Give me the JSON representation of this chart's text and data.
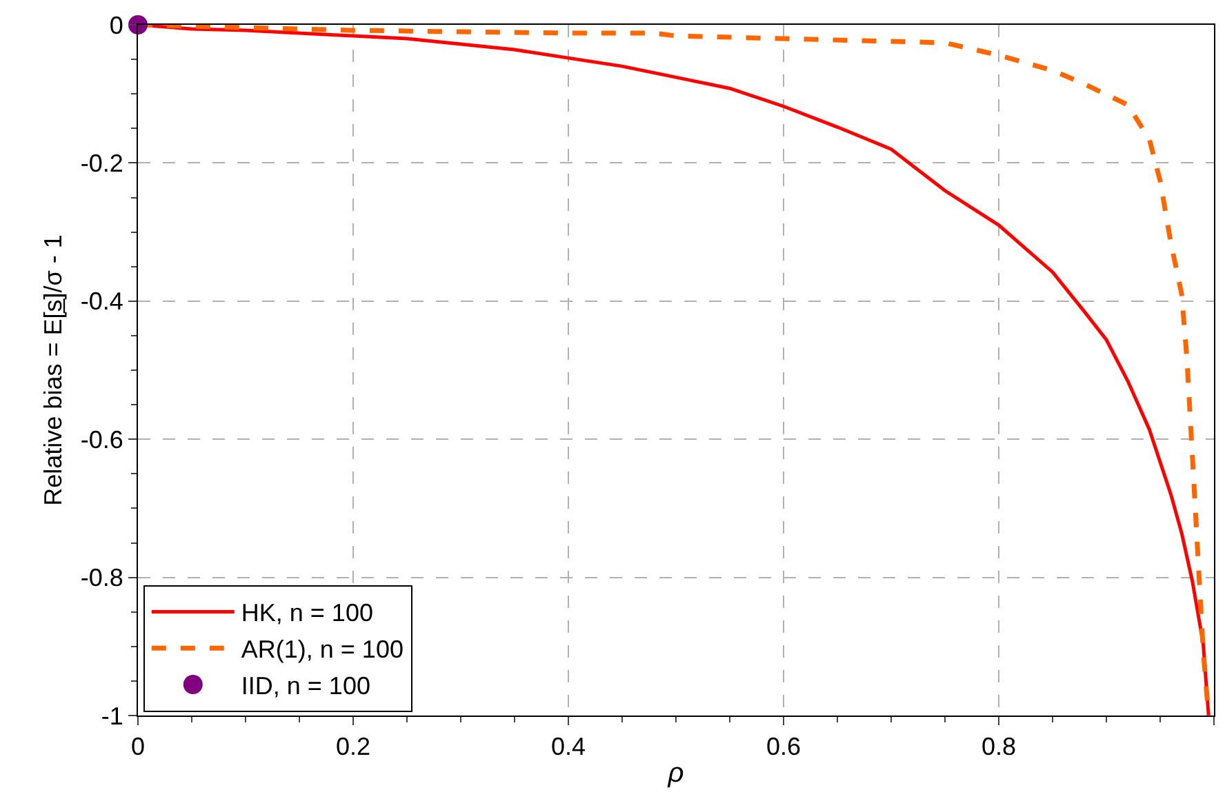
{
  "chart_data": {
    "type": "line",
    "xlabel": "ρ",
    "ylabel": "Relative bias = E[s̲]/σ - 1",
    "xlim": [
      0,
      1
    ],
    "ylim": [
      -1,
      0
    ],
    "xticks": [
      0,
      0.2,
      0.4,
      0.6,
      0.8,
      {
        "value": 1,
        "label": null
      }
    ],
    "yticks": [
      -1,
      -0.8,
      -0.6,
      -0.4,
      -0.2,
      0
    ],
    "grid": true,
    "legend": "bottom left",
    "series": [
      {
        "name": "HK, n = 100",
        "color": "#ff0000",
        "line_style": "solid",
        "marker": "none",
        "x": [
          0,
          0.05,
          0.1,
          0.2,
          0.25,
          0.3,
          0.35,
          0.4,
          0.45,
          0.5,
          0.55,
          0.6,
          0.65,
          0.7,
          0.72,
          0.75,
          0.8,
          0.85,
          0.88,
          0.9,
          0.92,
          0.94,
          0.96,
          0.97,
          0.98,
          0.99,
          0.995
        ],
        "values": [
          0,
          -0.006,
          -0.008,
          -0.016,
          -0.02,
          -0.028,
          -0.036,
          -0.048,
          -0.06,
          -0.076,
          -0.092,
          -0.118,
          -0.148,
          -0.18,
          -0.204,
          -0.24,
          -0.29,
          -0.358,
          -0.416,
          -0.456,
          -0.516,
          -0.586,
          -0.68,
          -0.736,
          -0.806,
          -0.896,
          -1
        ]
      },
      {
        "name": "AR(1), n = 100",
        "color": "#ff6600",
        "line_style": "dashed",
        "marker": "none",
        "x": [
          0,
          0.1,
          0.2,
          0.3,
          0.4,
          0.48,
          0.5,
          0.6,
          0.7,
          0.75,
          0.8,
          0.85,
          0.88,
          0.92,
          0.94,
          0.95,
          0.96,
          0.97,
          0.975,
          0.98,
          0.985,
          0.99,
          0.995
        ],
        "values": [
          0,
          -0.004,
          -0.008,
          -0.01,
          -0.012,
          -0.012,
          -0.016,
          -0.02,
          -0.024,
          -0.026,
          -0.044,
          -0.066,
          -0.086,
          -0.116,
          -0.166,
          -0.226,
          -0.316,
          -0.39,
          -0.486,
          -0.626,
          -0.766,
          -0.906,
          -1
        ]
      },
      {
        "name": "IID, n = 100",
        "color": "#800080",
        "type": "scatter",
        "marker": "circle",
        "x": [
          0
        ],
        "values": [
          0
        ]
      }
    ]
  }
}
